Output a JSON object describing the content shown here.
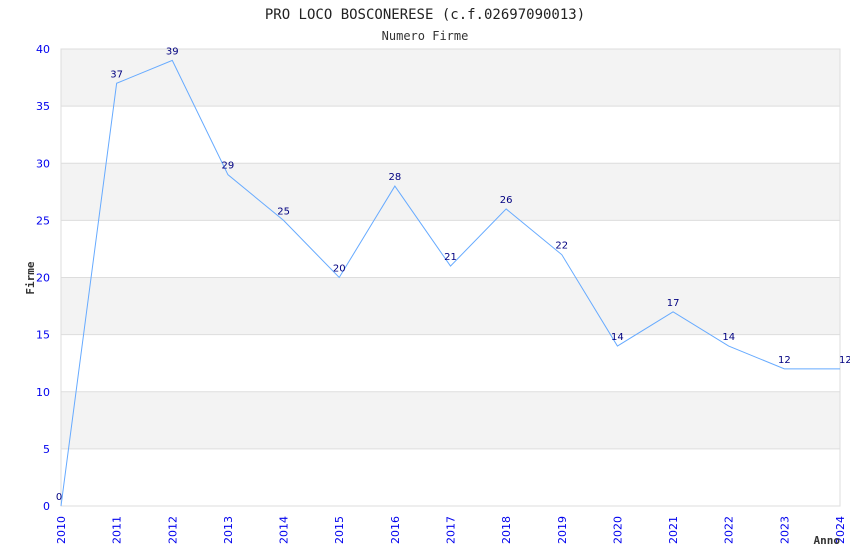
{
  "chart_data": {
    "type": "line",
    "title": "PRO LOCO BOSCONERESE (c.f.02697090013)",
    "subtitle": "Numero Firme",
    "xlabel": "Anno",
    "ylabel": "Firme",
    "x": [
      "2010",
      "2011",
      "2012",
      "2013",
      "2014",
      "2015",
      "2016",
      "2017",
      "2018",
      "2019",
      "2020",
      "2021",
      "2022",
      "2023",
      "2024"
    ],
    "series": [
      {
        "name": "Firme",
        "values": [
          0,
          37,
          39,
          29,
          25,
          20,
          28,
          21,
          26,
          22,
          14,
          17,
          14,
          12,
          12
        ],
        "color": "#66aaff"
      }
    ],
    "ylim": [
      0,
      40
    ],
    "yticks": [
      0,
      5,
      10,
      15,
      20,
      25,
      30,
      35,
      40
    ],
    "grid": true,
    "band_color": "#f3f3f3",
    "tick_color": "#0000ee",
    "label_color": "#000080"
  }
}
